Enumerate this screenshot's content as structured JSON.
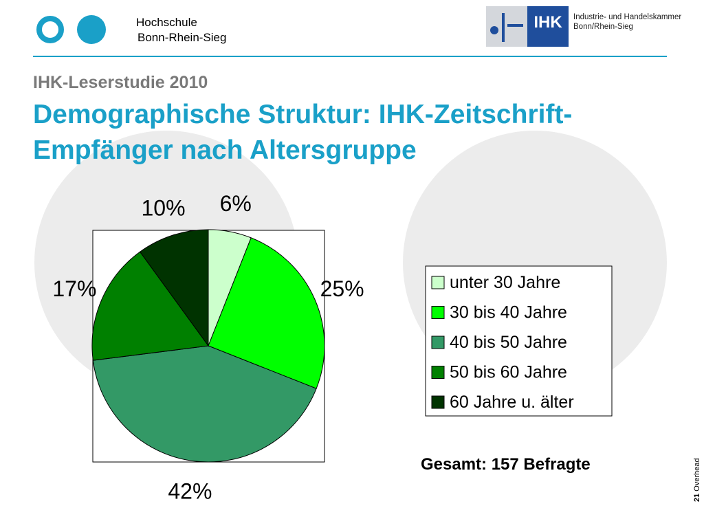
{
  "header": {
    "institution_line1": "Hochschule",
    "institution_line2": "Bonn-Rhein-Sieg",
    "ihk_logo_text": "IHK",
    "chamber_line1": "Industrie- und Handelskammer",
    "chamber_line2": "Bonn/Rhein-Sieg"
  },
  "slide": {
    "kicker": "IHK-Leserstudie 2010",
    "title": "Demographische Struktur: IHK-Zeitschrift-Empfänger nach Altersgruppe",
    "total": "Gesamt: 157 Befragte",
    "page_number": "21",
    "page_label": "Overhead"
  },
  "colors": {
    "accent": "#1aa0c8",
    "kicker": "#7a7a7a",
    "ihk_blue": "#1f4e9c"
  },
  "chart_data": {
    "type": "pie",
    "title": "",
    "start_angle_deg": 0,
    "direction": "clockwise",
    "legend_position": "right",
    "slices": [
      {
        "label": "unter 30 Jahre",
        "value": 6,
        "display": "6%",
        "color": "#ccffcc"
      },
      {
        "label": "30 bis 40 Jahre",
        "value": 25,
        "display": "25%",
        "color": "#00ff00"
      },
      {
        "label": "40 bis 50 Jahre",
        "value": 42,
        "display": "42%",
        "color": "#339966"
      },
      {
        "label": "50 bis 60 Jahre",
        "value": 17,
        "display": "17%",
        "color": "#008000"
      },
      {
        "label": "60 Jahre u. älter",
        "value": 10,
        "display": "10%",
        "color": "#003300"
      }
    ]
  }
}
